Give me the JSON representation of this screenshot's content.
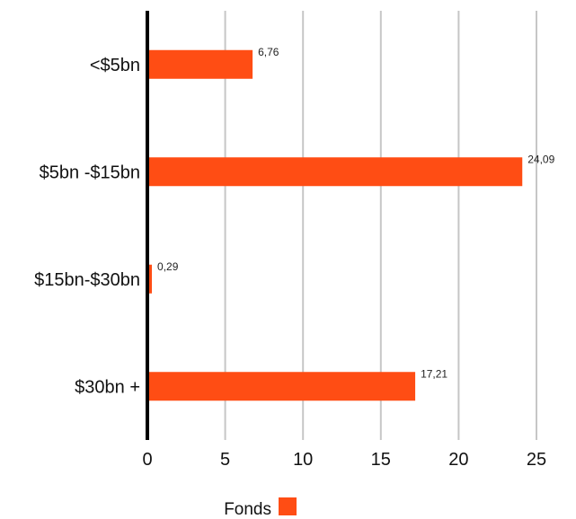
{
  "chart_data": {
    "type": "bar",
    "orientation": "horizontal",
    "categories": [
      "<$5bn",
      "$5bn -$15bn",
      "$15bn-$30bn",
      "$30bn +"
    ],
    "series": [
      {
        "name": "Fonds",
        "values": [
          6.76,
          24.09,
          0.29,
          17.21
        ],
        "value_labels": [
          "6,76",
          "24,09",
          "0,29",
          "17,21"
        ],
        "color": "#ff4d14"
      }
    ],
    "xlim": [
      0,
      25
    ],
    "xticks": [
      0,
      5,
      10,
      15,
      20,
      25
    ],
    "xtick_labels": [
      "0",
      "5",
      "10",
      "15",
      "20",
      "25"
    ],
    "grid": true,
    "grid_color": "#c6c6c6",
    "axis_color": "#000000",
    "legend_position": "bottom-center"
  }
}
